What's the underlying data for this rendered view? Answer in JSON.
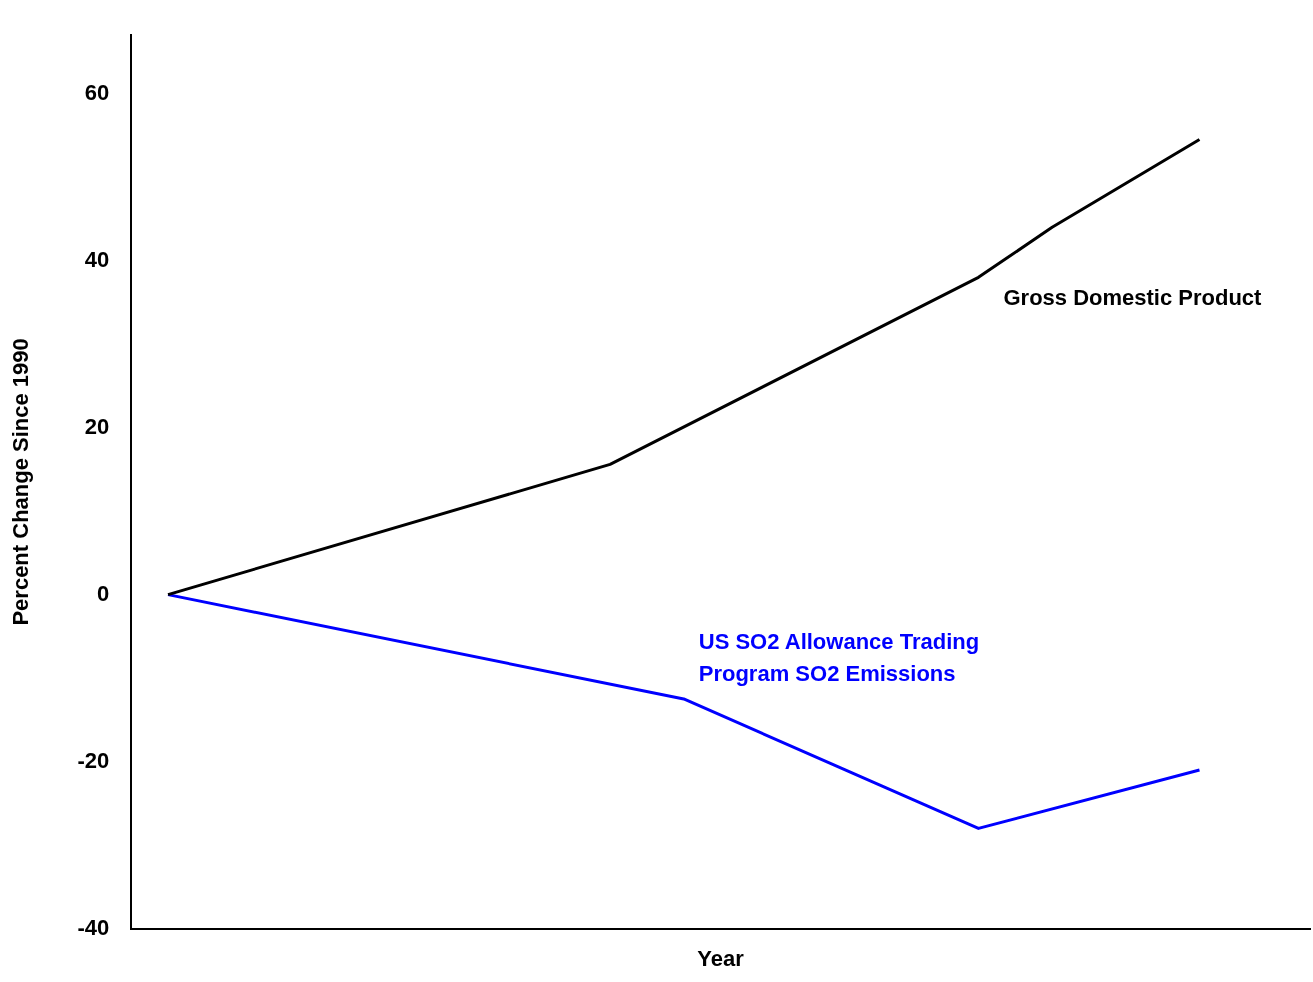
{
  "chart_data": {
    "type": "line",
    "xlabel": "Year",
    "ylabel": "Percent Change Since 1990",
    "categories": [
      null,
      null,
      null,
      null,
      null,
      null,
      null,
      null,
      null,
      null,
      null,
      null,
      null,
      null,
      null,
      null
    ],
    "series": [
      {
        "name": "Gross Domestic Product",
        "color": "#000000",
        "values": [
          0,
          null,
          null,
          null,
          null,
          null,
          15.6,
          null,
          null,
          null,
          null,
          38,
          44,
          null,
          54.5,
          null
        ]
      },
      {
        "name": "US SO2 Allowance Trading Program SO2 Emissions",
        "color": "#0000ff",
        "values": [
          0,
          null,
          null,
          null,
          null,
          null,
          null,
          -12.5,
          null,
          null,
          null,
          -28,
          null,
          null,
          -21,
          null
        ]
      }
    ],
    "ylim": [
      -40,
      67
    ],
    "yticks": [
      -40,
      -20,
      0,
      20,
      40,
      60
    ],
    "grid": false,
    "legend": false,
    "marker": "none",
    "line_style": "solid"
  }
}
